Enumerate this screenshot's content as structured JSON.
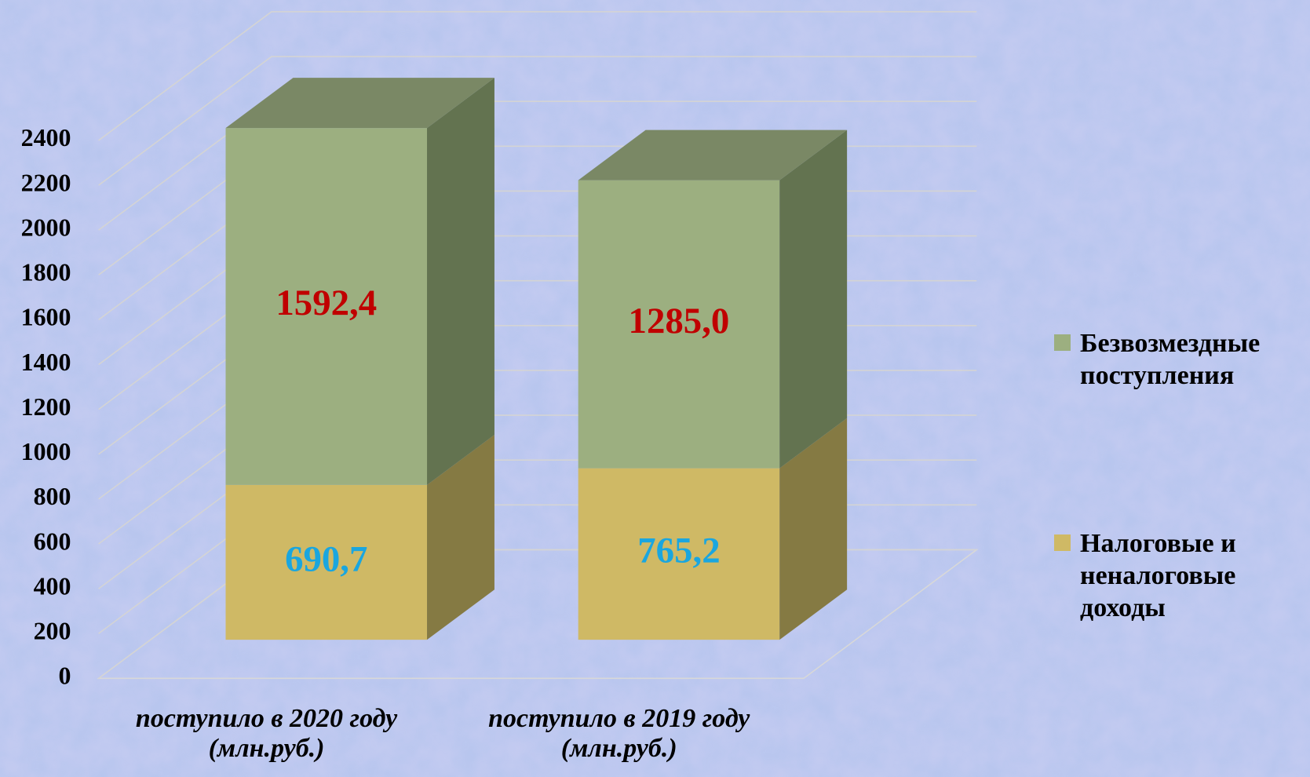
{
  "chart_data": {
    "type": "bar3d_stacked",
    "categories": [
      "поступило в 2020 году (млн.руб.)",
      "поступило в 2019 году (млн.руб.)"
    ],
    "series": [
      {
        "name": "Налоговые и неналоговые доходы",
        "color": "#cfb965",
        "side_color": "#857a43",
        "label_color": "#1aa6df",
        "values": [
          690.7,
          765.2
        ],
        "value_labels": [
          "690,7",
          "765,2"
        ]
      },
      {
        "name": "Безвозмездные поступления",
        "color": "#9caf80",
        "side_color": "#637350",
        "top_color": "#7a8865",
        "label_color": "#c00000",
        "values": [
          1592.4,
          1285.0
        ],
        "value_labels": [
          "1592,4",
          "1285,0"
        ]
      }
    ],
    "ylim": [
      0,
      2400
    ],
    "yticks": [
      0,
      200,
      400,
      600,
      800,
      1000,
      1200,
      1400,
      1600,
      1800,
      2000,
      2200,
      2400
    ],
    "grid": true,
    "legend": "right"
  }
}
